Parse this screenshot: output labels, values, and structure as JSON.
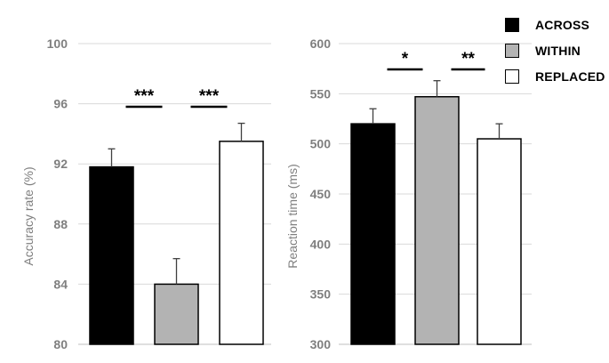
{
  "legend": [
    {
      "label": "ACROSS",
      "color": "#000000"
    },
    {
      "label": "WITHIN",
      "color": "#b3b3b3"
    },
    {
      "label": "REPLACED",
      "color": "#ffffff"
    }
  ],
  "chart_data": [
    {
      "type": "bar",
      "categories": [
        "ACROSS",
        "WITHIN",
        "REPLACED"
      ],
      "values": [
        91.8,
        84.0,
        93.5
      ],
      "errors": [
        1.2,
        1.7,
        1.2
      ],
      "colors": [
        "#000000",
        "#b3b3b3",
        "#ffffff"
      ],
      "ylabel": "Accuracy rate (%)",
      "ylim": [
        80,
        100
      ],
      "yticks": [
        80,
        84,
        88,
        92,
        96,
        100
      ],
      "grid": true,
      "significance": [
        {
          "label": "***",
          "between": [
            0,
            1
          ]
        },
        {
          "label": "***",
          "between": [
            1,
            2
          ]
        }
      ]
    },
    {
      "type": "bar",
      "categories": [
        "ACROSS",
        "WITHIN",
        "REPLACED"
      ],
      "values": [
        520,
        547,
        505
      ],
      "errors": [
        15,
        16,
        15
      ],
      "colors": [
        "#000000",
        "#b3b3b3",
        "#ffffff"
      ],
      "ylabel": "Reaction time (ms)",
      "ylim": [
        300,
        600
      ],
      "yticks": [
        300,
        350,
        400,
        450,
        500,
        550,
        600
      ],
      "grid": true,
      "significance": [
        {
          "label": "*",
          "between": [
            0,
            1
          ]
        },
        {
          "label": "**",
          "between": [
            1,
            2
          ]
        }
      ]
    }
  ]
}
